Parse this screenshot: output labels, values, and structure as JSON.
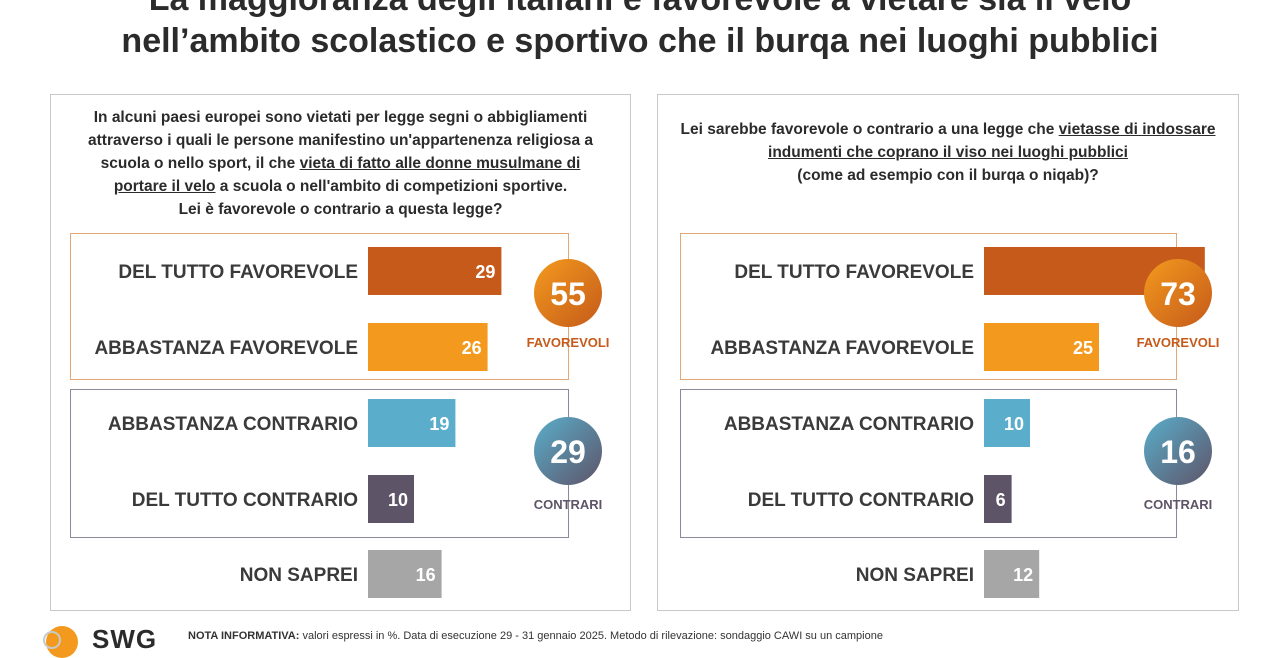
{
  "title_line1": "La maggioranza degli italiani è favorevole a vietare sia il velo",
  "title_line2": "nell’ambito scolastico e sportivo che il burqa nei luoghi pubblici",
  "colors": {
    "del_tutto_favorevole": "#c55a1a",
    "abbastanza_favorevole": "#f39a1e",
    "abbastanza_contrario": "#5aaecb",
    "del_tutto_contrario": "#5e5468",
    "non_saprei": "#a6a6a6",
    "favorevoli_label": "#c55a1a",
    "contrari_label": "#5e5468"
  },
  "left": {
    "question": {
      "l1": "In alcuni paesi europei sono vietati per legge segni o abbigliamenti",
      "l2": "attraverso i quali le persone manifestino un'appartenenza religiosa a",
      "l3_pre": "scuola o nello sport, il che ",
      "l3_u": "vieta di fatto alle donne musulmane di",
      "l4_u": "portare il velo",
      "l4_post": " a scuola o nell'ambito di competizioni sportive.",
      "l5": "Lei è favorevole o contrario a questa legge?"
    }
  },
  "right": {
    "question": {
      "l1_pre": "Lei sarebbe favorevole o contrario a una legge che ",
      "l1_u": "vietasse di indossare",
      "l2_u": "indumenti che coprano il viso nei luoghi pubblici",
      "l3": "(come ad esempio con il burqa o niqab)?"
    }
  },
  "chart_data": [
    {
      "type": "bar",
      "orientation": "horizontal",
      "categories": [
        "DEL TUTTO FAVOREVOLE",
        "ABBASTANZA FAVOREVOLE",
        "ABBASTANZA CONTRARIO",
        "DEL TUTTO CONTRARIO",
        "NON SAPREI"
      ],
      "values": [
        29,
        26,
        19,
        10,
        16
      ],
      "unit": "%",
      "totals": [
        {
          "label": "FAVOREVOLI",
          "value": 55
        },
        {
          "label": "CONTRARI",
          "value": 29
        }
      ]
    },
    {
      "type": "bar",
      "orientation": "horizontal",
      "categories": [
        "DEL TUTTO FAVOREVOLE",
        "ABBASTANZA FAVOREVOLE",
        "ABBASTANZA CONTRARIO",
        "DEL TUTTO CONTRARIO",
        "NON SAPREI"
      ],
      "values": [
        48,
        25,
        10,
        6,
        12
      ],
      "unit": "%",
      "totals": [
        {
          "label": "FAVOREVOLI",
          "value": 73
        },
        {
          "label": "CONTRARI",
          "value": 16
        }
      ]
    }
  ],
  "footer": {
    "note_label": "NOTA INFORMATIVA:",
    "note_text": " valori espressi in %. Data di esecuzione 29 - 31 gennaio 2025. Metodo di rilevazione: sondaggio CAWI su un campione",
    "logo_text": "SWG"
  }
}
